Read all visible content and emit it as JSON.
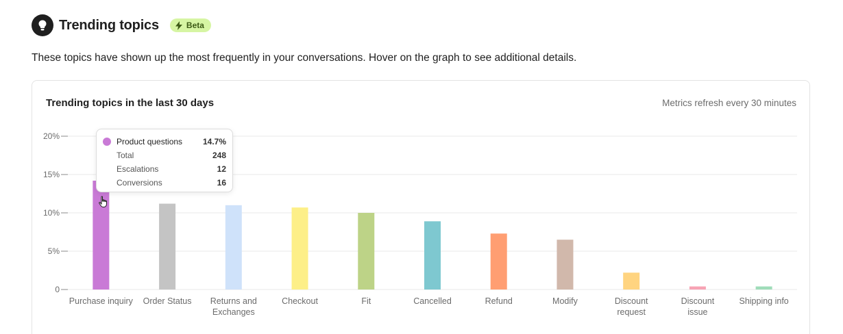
{
  "header": {
    "title": "Trending topics",
    "badge": "Beta",
    "icon": "lightbulb-icon",
    "badge_icon": "lightning-icon"
  },
  "description": "These topics have shown up the most frequently in your conversations. Hover on the graph to see additional details.",
  "card": {
    "title": "Trending topics in the last 30 days",
    "meta": "Metrics refresh every 30 minutes"
  },
  "tooltip": {
    "topic": "Product questions",
    "percent": "14.7%",
    "color": "#c97ad6",
    "rows": [
      {
        "label": "Total",
        "value": "248"
      },
      {
        "label": "Escalations",
        "value": "12"
      },
      {
        "label": "Conversions",
        "value": "16"
      }
    ]
  },
  "chart_data": {
    "type": "bar",
    "categories": [
      [
        "Purchase inquiry"
      ],
      [
        "Order Status"
      ],
      [
        "Returns and",
        "Exchanges"
      ],
      [
        "Checkout"
      ],
      [
        "Fit"
      ],
      [
        "Cancelled"
      ],
      [
        "Refund"
      ],
      [
        "Modify"
      ],
      [
        "Discount",
        "request"
      ],
      [
        "Discount",
        "issue"
      ],
      [
        "Shipping info"
      ]
    ],
    "values": [
      14.2,
      11.2,
      11.0,
      10.7,
      10.0,
      8.9,
      7.3,
      6.5,
      2.2,
      0.4,
      0.4
    ],
    "colors": [
      "#c97ad6",
      "#c4c4c4",
      "#cfe2fa",
      "#fdef88",
      "#bdd387",
      "#7ec8d0",
      "#ff9e72",
      "#d1b8ab",
      "#ffd480",
      "#f7a3b4",
      "#9fdcb9"
    ],
    "yticks": [
      "0",
      "5%",
      "10%",
      "15%",
      "20%"
    ],
    "ylim": [
      0,
      20
    ],
    "grid": true
  }
}
